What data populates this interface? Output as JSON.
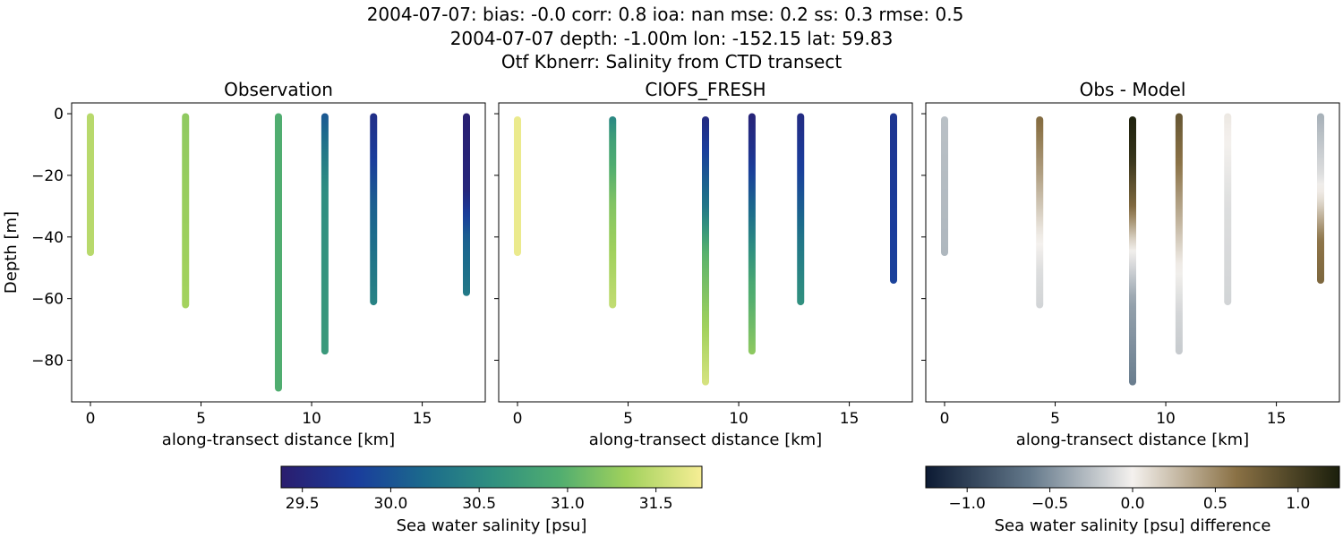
{
  "title_lines": [
    "2004-07-07: bias: -0.0  corr: 0.8  ioa: nan  mse: 0.2  ss: 0.3  rmse: 0.5",
    "2004-07-07 depth: -1.00m lon: -152.15 lat: 59.83",
    "Otf Kbnerr: Salinity from CTD transect"
  ],
  "chart_data": [
    {
      "type": "scatter",
      "title": "Observation",
      "xlabel": "along-transect distance [km]",
      "ylabel": "Depth [m]",
      "xlim": [
        -0.85,
        17.85
      ],
      "ylim": [
        -93.5,
        3.5
      ],
      "xticks": [
        0,
        5,
        10,
        15
      ],
      "yticks": [
        0,
        -20,
        -40,
        -60,
        -80
      ],
      "colormap": "haline",
      "grid": false,
      "profiles": [
        {
          "x": 0.0,
          "top": -1,
          "bottom": -45,
          "stops": [
            [
              0,
              31.45
            ],
            [
              -45,
              31.45
            ]
          ]
        },
        {
          "x": 4.3,
          "top": -1,
          "bottom": -62,
          "stops": [
            [
              0,
              31.25
            ],
            [
              -62,
              31.35
            ]
          ]
        },
        {
          "x": 8.5,
          "top": -1,
          "bottom": -89,
          "stops": [
            [
              0,
              30.95
            ],
            [
              -89,
              30.95
            ]
          ]
        },
        {
          "x": 10.6,
          "top": -1,
          "bottom": -77,
          "stops": [
            [
              0,
              30.0
            ],
            [
              -12,
              30.3
            ],
            [
              -25,
              30.55
            ],
            [
              -77,
              30.7
            ]
          ]
        },
        {
          "x": 12.8,
          "top": -1,
          "bottom": -61,
          "stops": [
            [
              0,
              29.6
            ],
            [
              -15,
              29.8
            ],
            [
              -30,
              30.1
            ],
            [
              -61,
              30.45
            ]
          ]
        },
        {
          "x": 17.0,
          "top": -1,
          "bottom": -58,
          "stops": [
            [
              0,
              29.4
            ],
            [
              -25,
              29.5
            ],
            [
              -40,
              30.1
            ],
            [
              -58,
              30.35
            ]
          ]
        }
      ]
    },
    {
      "type": "scatter",
      "title": "CIOFS_FRESH",
      "xlabel": "along-transect distance [km]",
      "ylabel": "",
      "xlim": [
        -0.85,
        17.85
      ],
      "ylim": [
        -93.5,
        3.5
      ],
      "xticks": [
        0,
        5,
        10,
        15
      ],
      "yticks": [
        0,
        -20,
        -40,
        -60,
        -80
      ],
      "colormap": "haline",
      "grid": false,
      "profiles": [
        {
          "x": 0.0,
          "top": -2,
          "bottom": -45,
          "stops": [
            [
              0,
              31.7
            ],
            [
              -45,
              31.7
            ]
          ]
        },
        {
          "x": 4.3,
          "top": -2,
          "bottom": -62,
          "stops": [
            [
              0,
              30.4
            ],
            [
              -10,
              30.8
            ],
            [
              -30,
              31.2
            ],
            [
              -62,
              31.5
            ]
          ]
        },
        {
          "x": 8.5,
          "top": -2,
          "bottom": -87,
          "stops": [
            [
              0,
              29.5
            ],
            [
              -12,
              29.8
            ],
            [
              -30,
              30.3
            ],
            [
              -45,
              31.0
            ],
            [
              -87,
              31.6
            ]
          ]
        },
        {
          "x": 10.6,
          "top": -1,
          "bottom": -77,
          "stops": [
            [
              0,
              29.45
            ],
            [
              -15,
              29.7
            ],
            [
              -35,
              30.3
            ],
            [
              -55,
              30.9
            ],
            [
              -77,
              31.25
            ]
          ]
        },
        {
          "x": 12.8,
          "top": -1,
          "bottom": -61,
          "stops": [
            [
              0,
              29.55
            ],
            [
              -20,
              29.85
            ],
            [
              -40,
              30.3
            ],
            [
              -61,
              30.6
            ]
          ]
        },
        {
          "x": 17.0,
          "top": -1,
          "bottom": -54,
          "stops": [
            [
              0,
              29.7
            ],
            [
              -54,
              29.85
            ]
          ]
        }
      ]
    },
    {
      "type": "scatter",
      "title": "Obs - Model",
      "xlabel": "along-transect distance [km]",
      "ylabel": "",
      "xlim": [
        -0.85,
        17.85
      ],
      "ylim": [
        -93.5,
        3.5
      ],
      "xticks": [
        0,
        5,
        10,
        15
      ],
      "yticks": [
        0,
        -20,
        -40,
        -60,
        -80
      ],
      "colormap": "diff",
      "grid": false,
      "profiles": [
        {
          "x": 0.0,
          "top": -2,
          "bottom": -45,
          "stops": [
            [
              0,
              -0.25
            ],
            [
              -45,
              -0.3
            ]
          ]
        },
        {
          "x": 4.3,
          "top": -2,
          "bottom": -62,
          "stops": [
            [
              0,
              0.7
            ],
            [
              -20,
              0.4
            ],
            [
              -38,
              0.05
            ],
            [
              -50,
              -0.1
            ],
            [
              -62,
              -0.15
            ]
          ]
        },
        {
          "x": 8.5,
          "top": -2,
          "bottom": -87,
          "stops": [
            [
              0,
              1.25
            ],
            [
              -15,
              1.1
            ],
            [
              -30,
              0.7
            ],
            [
              -44,
              0.0
            ],
            [
              -60,
              -0.4
            ],
            [
              -87,
              -0.6
            ]
          ]
        },
        {
          "x": 10.6,
          "top": -1,
          "bottom": -77,
          "stops": [
            [
              0,
              0.85
            ],
            [
              -18,
              0.6
            ],
            [
              -35,
              0.3
            ],
            [
              -50,
              0.0
            ],
            [
              -65,
              -0.15
            ],
            [
              -77,
              -0.2
            ]
          ]
        },
        {
          "x": 12.8,
          "top": -1,
          "bottom": -61,
          "stops": [
            [
              0,
              0.05
            ],
            [
              -30,
              -0.1
            ],
            [
              -61,
              -0.15
            ]
          ]
        },
        {
          "x": 17.0,
          "top": -1,
          "bottom": -54,
          "stops": [
            [
              0,
              -0.35
            ],
            [
              -20,
              -0.1
            ],
            [
              -28,
              0.1
            ],
            [
              -40,
              0.6
            ],
            [
              -54,
              0.7
            ]
          ]
        }
      ]
    }
  ],
  "colorbars": [
    {
      "label": "Sea water salinity [psu]",
      "colormap": "haline",
      "range": [
        29.38,
        31.76
      ],
      "ticks": [
        "29.5",
        "30.0",
        "30.5",
        "31.0",
        "31.5"
      ]
    },
    {
      "label": "Sea water salinity [psu] difference",
      "colormap": "diff",
      "range": [
        -1.25,
        1.25
      ],
      "ticks": [
        "−1.0",
        "−0.5",
        "0.0",
        "0.5",
        "1.0"
      ]
    }
  ]
}
